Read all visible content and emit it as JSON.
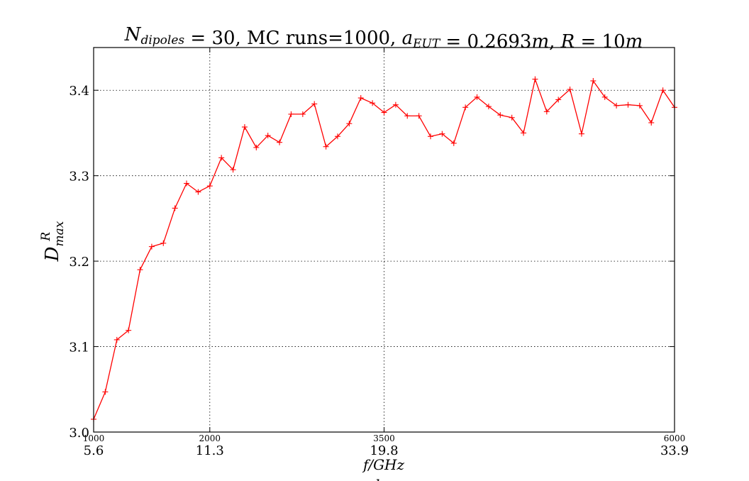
{
  "chart_data": {
    "type": "line",
    "title_parts": [
      {
        "text": "N",
        "style": "italic"
      },
      {
        "text": "dipoles",
        "style": "sub"
      },
      {
        "text": " = 30, MC runs=1000, ",
        "style": "normal"
      },
      {
        "text": "a",
        "style": "italic"
      },
      {
        "text": "EUT",
        "style": "sub"
      },
      {
        "text": " = 0.2693",
        "style": "normal"
      },
      {
        "text": "m",
        "style": "italic"
      },
      {
        "text": ", ",
        "style": "normal"
      },
      {
        "text": "R",
        "style": "italic"
      },
      {
        "text": " = 10",
        "style": "normal"
      },
      {
        "text": "m",
        "style": "italic"
      }
    ],
    "ylabel": {
      "base": "D",
      "sup": "R",
      "sub": "max"
    },
    "xlabel_primary": "f/GHz",
    "xlabel_secondary": "ka",
    "xlim": [
      1000,
      6000
    ],
    "ylim": [
      3.0,
      3.45
    ],
    "yticks": [
      3.0,
      3.1,
      3.2,
      3.3,
      3.4
    ],
    "ytick_labels": [
      "3.0",
      "3.1",
      "3.2",
      "3.3",
      "3.4"
    ],
    "xticks": [
      1000,
      2000,
      3500,
      6000
    ],
    "xtick_labels_ka": [
      "1000",
      "2000",
      "3500",
      "6000"
    ],
    "xtick_labels_freq": [
      "5.6",
      "11.3",
      "19.8",
      "33.9"
    ],
    "grid": true,
    "series": [
      {
        "color": "#ff0000",
        "marker": "+",
        "x": [
          1000,
          1100,
          1200,
          1300,
          1400,
          1500,
          1600,
          1700,
          1800,
          1900,
          2000,
          2100,
          2200,
          2300,
          2400,
          2500,
          2600,
          2700,
          2800,
          2900,
          3000,
          3100,
          3200,
          3300,
          3400,
          3500,
          3600,
          3700,
          3800,
          3900,
          4000,
          4100,
          4200,
          4300,
          4400,
          4500,
          4600,
          4700,
          4800,
          4900,
          5000,
          5100,
          5200,
          5300,
          5400,
          5500,
          5600,
          5700,
          5800,
          5900,
          6000
        ],
        "y": [
          3.015,
          3.047,
          3.108,
          3.119,
          3.19,
          3.217,
          3.221,
          3.262,
          3.291,
          3.281,
          3.288,
          3.321,
          3.307,
          3.357,
          3.333,
          3.347,
          3.339,
          3.372,
          3.372,
          3.384,
          3.334,
          3.346,
          3.361,
          3.391,
          3.385,
          3.374,
          3.383,
          3.37,
          3.37,
          3.346,
          3.349,
          3.338,
          3.38,
          3.392,
          3.381,
          3.371,
          3.368,
          3.35,
          3.413,
          3.375,
          3.389,
          3.401,
          3.349,
          3.411,
          3.392,
          3.382,
          3.383,
          3.382,
          3.362,
          3.4,
          3.38
        ]
      }
    ]
  }
}
